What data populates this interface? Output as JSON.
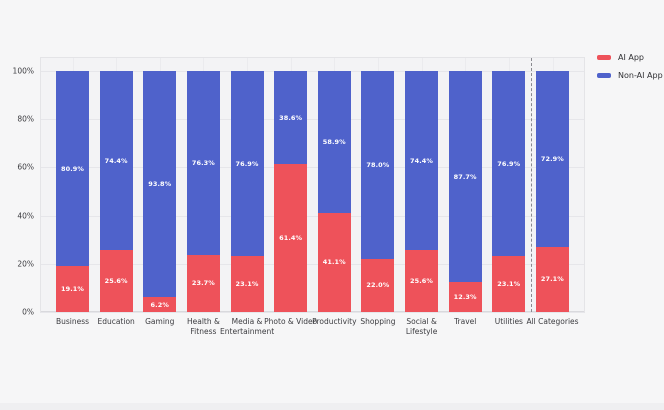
{
  "page": {
    "background_color": "#f6f6f7",
    "plot_background_color": "#f3f3f5"
  },
  "chart_data": {
    "type": "bar",
    "stacked": true,
    "orientation": "vertical",
    "categories": [
      "Business",
      "Education",
      "Gaming",
      "Health & Fitness",
      "Media & Entertainment",
      "Photo & Video",
      "Productivity",
      "Shopping",
      "Social & Lifestyle",
      "Travel",
      "Utilities",
      "All Categories"
    ],
    "series": [
      {
        "name": "AI App",
        "color": "#ee525a",
        "values": [
          19.1,
          25.6,
          6.2,
          23.7,
          23.1,
          61.4,
          41.1,
          22.0,
          25.6,
          12.3,
          23.1,
          27.1
        ],
        "labels": [
          "19.1%",
          "25.6%",
          "6.2%",
          "23.7%",
          "23.1%",
          "61.4%",
          "41.1%",
          "22.0%",
          "25.6%",
          "12.3%",
          "23.1%",
          "27.1%"
        ]
      },
      {
        "name": "Non-AI App",
        "color": "#4f62cb",
        "values": [
          80.9,
          74.4,
          93.8,
          76.3,
          76.9,
          38.6,
          58.9,
          78.0,
          74.4,
          87.7,
          76.9,
          72.9
        ],
        "labels": [
          "80.9%",
          "74.4%",
          "93.8%",
          "76.3%",
          "76.9%",
          "38.6%",
          "58.9%",
          "78.0%",
          "74.4%",
          "87.7%",
          "76.9%",
          "72.9%"
        ]
      }
    ],
    "y_ticks": [
      0,
      20,
      40,
      60,
      80,
      100
    ],
    "y_tick_labels": [
      "0%",
      "20%",
      "40%",
      "60%",
      "80%",
      "100%"
    ],
    "ylim": [
      0,
      105.3
    ],
    "grid": true,
    "separator_before_category": "All Categories",
    "separator_style": "dashed",
    "legend_position": "top-right",
    "bar_label_color": "#ffffff"
  },
  "legend": {
    "items": [
      {
        "label": "AI App",
        "color": "#ee525a"
      },
      {
        "label": "Non-AI App",
        "color": "#4f62cb"
      }
    ]
  }
}
